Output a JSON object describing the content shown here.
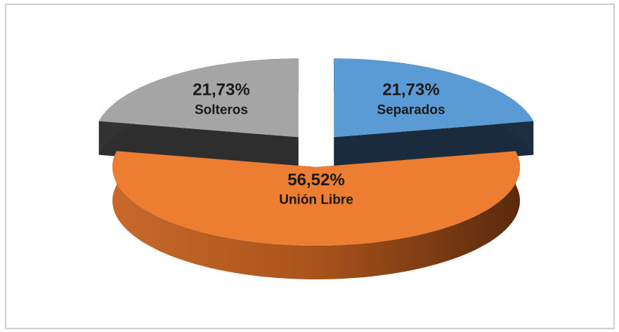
{
  "chart_data": {
    "type": "pie3d",
    "categories": [
      "Separados",
      "Unión Libre",
      "Solteros"
    ],
    "values": [
      21.73,
      56.52,
      21.73
    ],
    "value_labels": [
      "21,73%",
      "56,52%",
      "21,73%"
    ],
    "colors": [
      "#5b9bd5",
      "#ed7d31",
      "#a5a5a5"
    ]
  }
}
